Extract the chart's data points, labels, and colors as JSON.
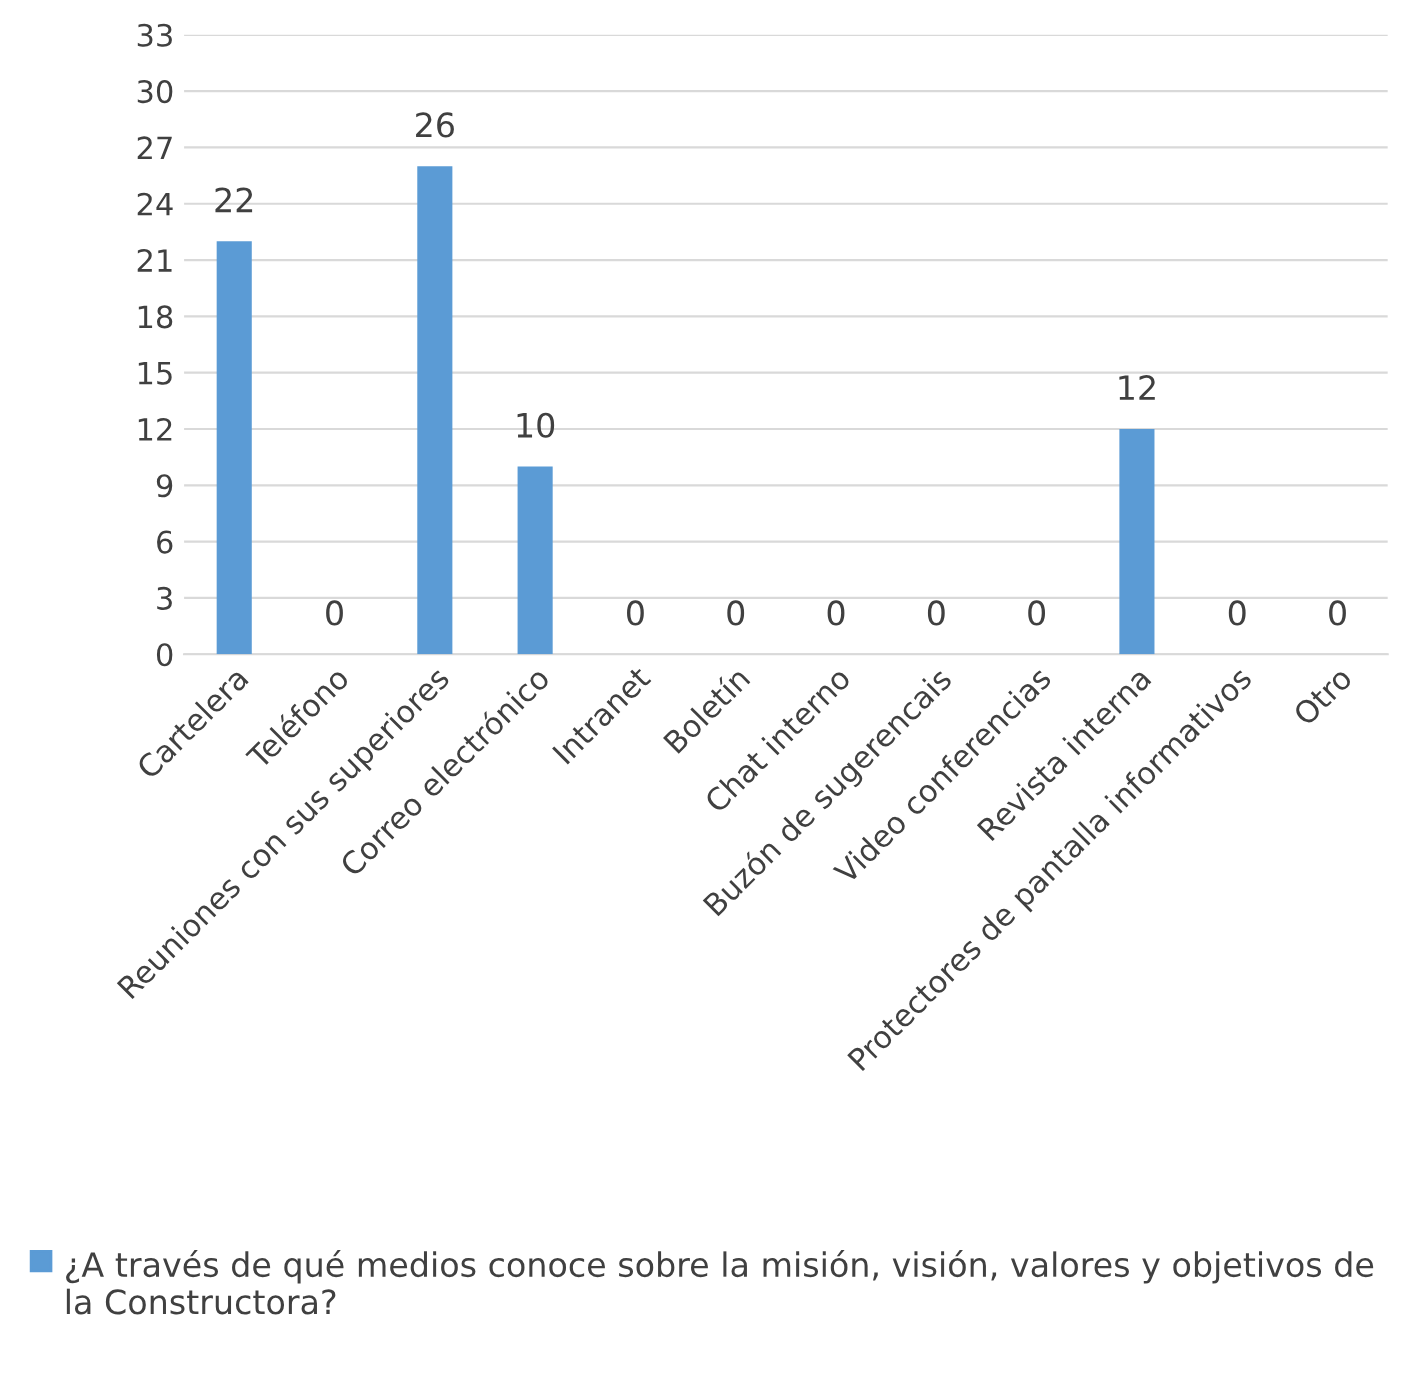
{
  "chart_data": {
    "type": "bar",
    "categories": [
      "Cartelera",
      "Teléfono",
      "Reuniones con sus superiores",
      "Correo electrónico",
      "Intranet",
      "Boletín",
      "Chat interno",
      "Buzón de sugerencais",
      "Video conferencias",
      "Revista interna",
      "Protectores de pantalla informativos",
      "Otro"
    ],
    "series": [
      {
        "name": "¿A través de qué medios conoce sobre la misión, visión, valores y objetivos de la Constructora?",
        "color": "#5b9bd5",
        "values": [
          22,
          0,
          26,
          10,
          0,
          0,
          0,
          0,
          0,
          12,
          0,
          0
        ]
      }
    ],
    "ylim": [
      0,
      33
    ],
    "yticks": [
      0,
      3,
      6,
      9,
      12,
      15,
      18,
      21,
      24,
      27,
      30,
      33
    ],
    "grid": "y",
    "data_labels": true,
    "legend": "bottom"
  }
}
